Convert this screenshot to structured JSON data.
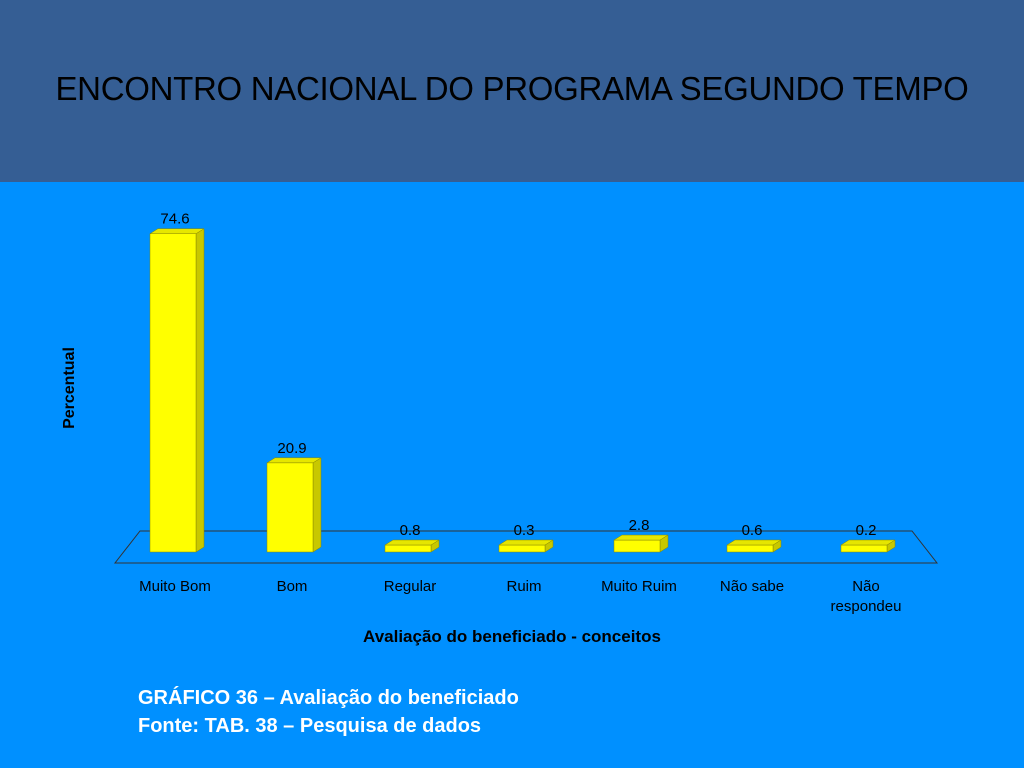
{
  "slide": {
    "title": "ENCONTRO NACIONAL DO PROGRAMA SEGUNDO TEMPO"
  },
  "caption": {
    "line1": "GRÁFICO 36 – Avaliação do beneficiado",
    "line2": "Fonte: TAB. 38 – Pesquisa de dados"
  },
  "chart_data": {
    "type": "bar",
    "categories": [
      "Muito Bom",
      "Bom",
      "Regular",
      "Ruim",
      "Muito Ruim",
      "Não sabe",
      "Não respondeu"
    ],
    "category_lines": [
      [
        "Muito Bom"
      ],
      [
        "Bom"
      ],
      [
        "Regular"
      ],
      [
        "Ruim"
      ],
      [
        "Muito Ruim"
      ],
      [
        "Não sabe"
      ],
      [
        "Não",
        "respondeu"
      ]
    ],
    "values": [
      74.6,
      20.9,
      0.8,
      0.3,
      2.8,
      0.6,
      0.2
    ],
    "value_labels": [
      "74.6",
      "20.9",
      "0.8",
      "0.3",
      "2.8",
      "0.6",
      "0.2"
    ],
    "xlabel": "Avaliação do beneficiado  - conceitos",
    "ylabel": "Percentual",
    "ylim": [
      0,
      75
    ],
    "grid": false,
    "legend": false,
    "bar_color": "#ffff00",
    "bar_side_color": "#c8c800"
  }
}
